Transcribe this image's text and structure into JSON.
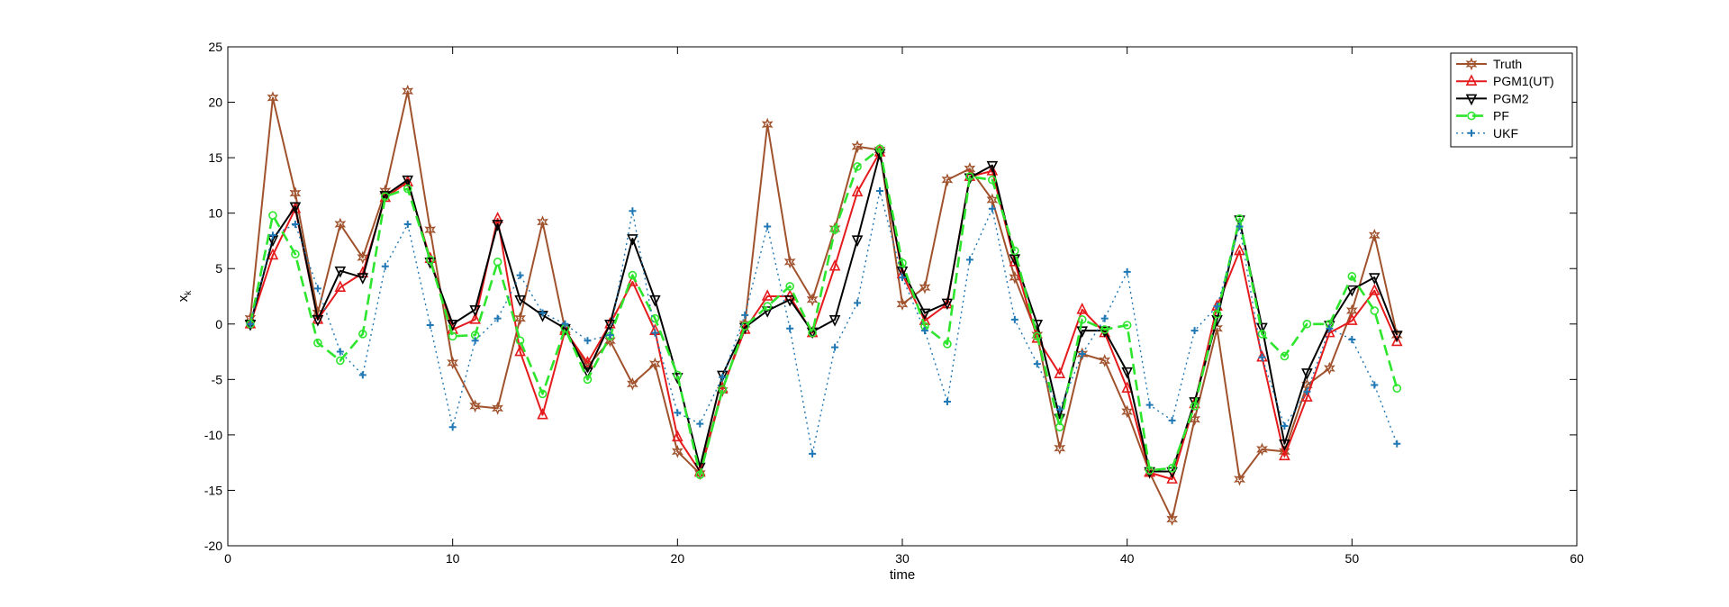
{
  "chart_data": {
    "type": "line",
    "xlabel": "time",
    "ylabel_main": "x",
    "ylabel_sub": "k",
    "xlim": [
      0,
      60
    ],
    "ylim": [
      -20,
      25
    ],
    "xticks": [
      0,
      10,
      20,
      30,
      40,
      50,
      60
    ],
    "yticks": [
      -20,
      -15,
      -10,
      -5,
      0,
      5,
      10,
      15,
      20,
      25
    ],
    "xtick_labels": [
      "0",
      "10",
      "20",
      "30",
      "40",
      "50",
      "60"
    ],
    "ytick_labels": [
      "-20",
      "-15",
      "-10",
      "-5",
      "0",
      "5",
      "10",
      "15",
      "20",
      "25"
    ],
    "grid": false,
    "legend_position": "top-right",
    "x": [
      1,
      2,
      3,
      4,
      5,
      6,
      7,
      8,
      9,
      10,
      11,
      12,
      13,
      14,
      15,
      16,
      17,
      18,
      19,
      20,
      21,
      22,
      23,
      24,
      25,
      26,
      27,
      28,
      29,
      30,
      31,
      32,
      33,
      34,
      35,
      36,
      37,
      38,
      39,
      40,
      41,
      42,
      43,
      44,
      45,
      46,
      47,
      48,
      49,
      50,
      51,
      52
    ],
    "series": [
      {
        "name": "Truth",
        "color": "#a0522d",
        "dash": "",
        "marker": "star",
        "values": [
          0.5,
          20.4,
          11.8,
          1.0,
          9.0,
          6.0,
          12.0,
          21.0,
          8.5,
          -3.5,
          -7.4,
          -7.6,
          0.5,
          9.2,
          -0.5,
          -3.8,
          -1.5,
          -5.4,
          -3.6,
          -11.5,
          -13.5,
          -6.0,
          0.0,
          18.0,
          5.6,
          2.2,
          8.6,
          16.0,
          15.7,
          1.8,
          3.3,
          13.0,
          14.0,
          11.2,
          4.2,
          -1.0,
          -11.2,
          -2.7,
          -3.3,
          -7.9,
          -13.4,
          -17.6,
          -8.6,
          -0.4,
          -14.0,
          -11.3,
          -11.5,
          -5.5,
          -4.0,
          1.2,
          8.0,
          -1.0
        ]
      },
      {
        "name": "PGM1(UT)",
        "color": "#e41a1c",
        "dash": "",
        "marker": "triangle-up",
        "values": [
          0.0,
          6.2,
          10.4,
          0.4,
          3.3,
          4.6,
          11.4,
          12.8,
          5.9,
          -0.5,
          0.4,
          9.5,
          -2.5,
          -8.2,
          -0.6,
          -3.5,
          0.0,
          3.8,
          -0.6,
          -10.2,
          -13.3,
          -5.8,
          -0.5,
          2.5,
          2.5,
          -0.8,
          5.2,
          11.9,
          15.5,
          4.5,
          0.3,
          1.8,
          13.3,
          13.8,
          5.6,
          -1.3,
          -4.5,
          1.3,
          -0.8,
          -5.8,
          -13.4,
          -14.0,
          -7.2,
          1.6,
          6.6,
          -3.0,
          -11.9,
          -6.6,
          -0.8,
          0.3,
          3.0,
          -1.6
        ]
      },
      {
        "name": "PGM2",
        "color": "#000000",
        "dash": "",
        "marker": "triangle-down",
        "values": [
          0.0,
          7.6,
          10.6,
          0.4,
          4.8,
          4.2,
          11.6,
          13.0,
          5.6,
          0.0,
          1.3,
          9.0,
          2.2,
          0.8,
          -0.4,
          -4.3,
          0.0,
          7.7,
          2.2,
          -4.8,
          -12.9,
          -4.6,
          -0.3,
          1.2,
          2.2,
          -0.7,
          0.4,
          7.6,
          15.4,
          4.8,
          1.0,
          1.9,
          13.2,
          14.3,
          5.9,
          0.0,
          -8.5,
          -0.6,
          -0.6,
          -4.3,
          -13.3,
          -13.3,
          -7.0,
          0.4,
          9.4,
          -0.3,
          -10.8,
          -4.4,
          -0.1,
          3.1,
          4.2,
          -1.0
        ]
      },
      {
        "name": "PF",
        "color": "#2ee52e",
        "dash": "12,6",
        "marker": "circle",
        "values": [
          0.0,
          9.8,
          6.3,
          -1.7,
          -3.3,
          -0.9,
          11.5,
          12.2,
          5.8,
          -1.1,
          -1.0,
          5.6,
          -1.5,
          -6.3,
          -0.4,
          -5.0,
          -1.1,
          4.4,
          0.5,
          -4.6,
          -13.6,
          -5.9,
          -0.2,
          1.6,
          3.4,
          -0.8,
          8.5,
          14.2,
          15.8,
          5.5,
          -0.2,
          -1.8,
          13.3,
          13.0,
          6.6,
          -1.1,
          -9.3,
          0.4,
          -0.5,
          -0.1,
          -13.2,
          -13.0,
          -7.4,
          0.9,
          9.5,
          -0.9,
          -2.9,
          0.0,
          0.0,
          4.3,
          1.2,
          -5.8
        ]
      },
      {
        "name": "UKF",
        "color": "#1f77b4",
        "dash": "2,4",
        "marker": "plus",
        "values": [
          0.0,
          8.0,
          9.0,
          3.2,
          -2.5,
          -4.6,
          5.2,
          9.0,
          -0.1,
          -9.3,
          -1.5,
          0.5,
          4.4,
          1.0,
          0.0,
          -1.5,
          -1.0,
          10.2,
          -0.8,
          -8.0,
          -9.0,
          -4.8,
          0.8,
          8.8,
          -0.4,
          -11.7,
          -2.1,
          1.9,
          12.0,
          4.2,
          -0.6,
          -7.0,
          5.8,
          10.4,
          0.4,
          -3.6,
          -7.7,
          -2.7,
          0.5,
          4.7,
          -7.3,
          -8.7,
          -0.6,
          1.6,
          8.8,
          -3.0,
          -9.2,
          -6.1,
          -0.4,
          -1.4,
          -5.5,
          -10.8
        ]
      }
    ]
  }
}
